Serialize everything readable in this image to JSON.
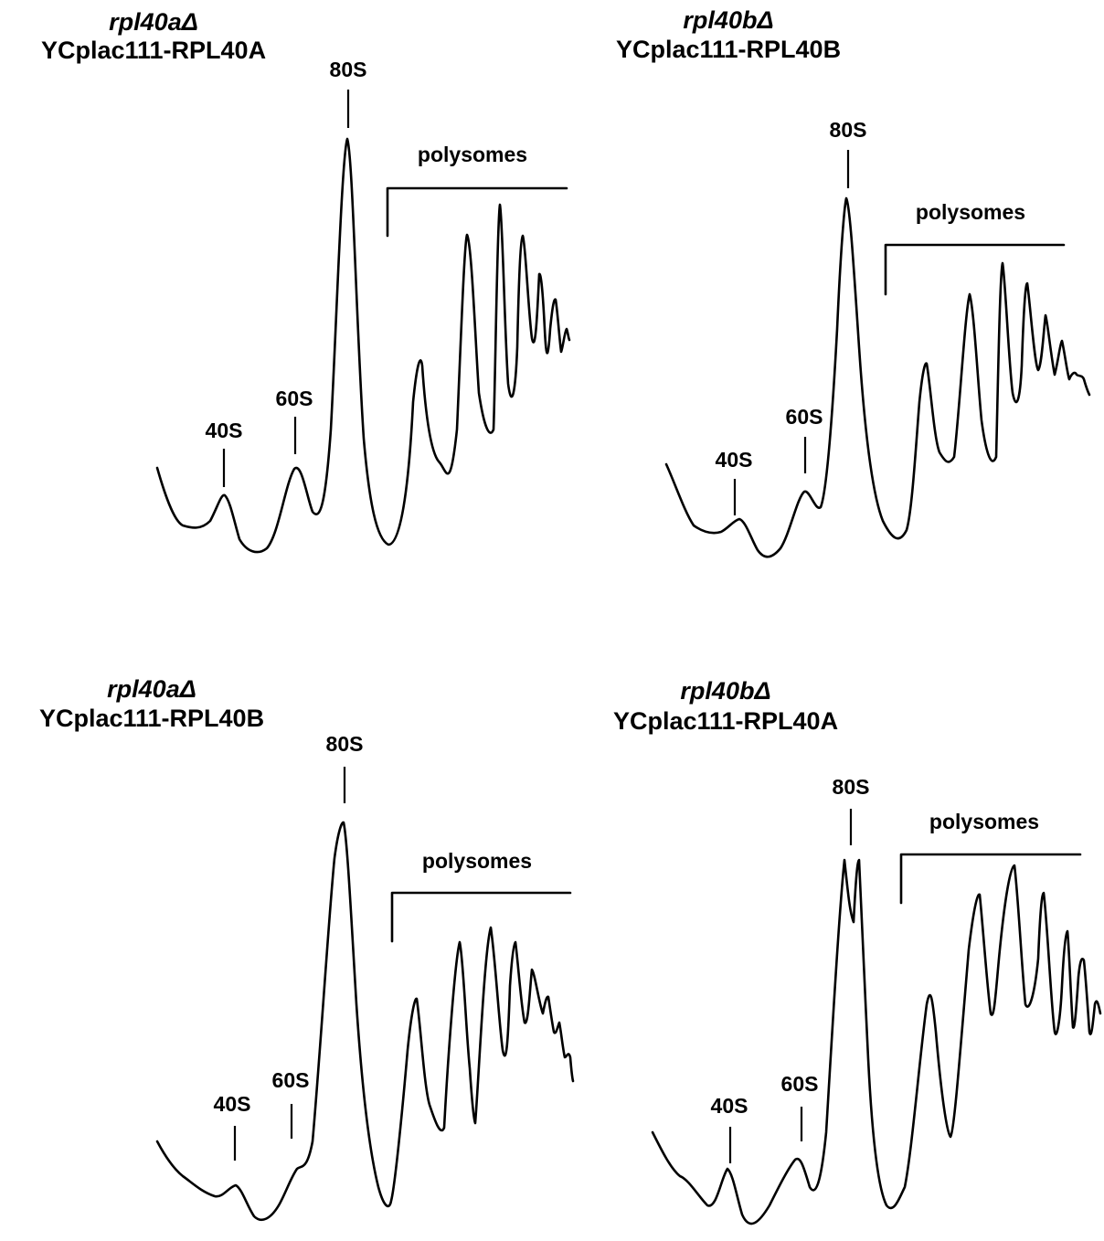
{
  "panels": [
    {
      "strain": "rpl40aΔ",
      "plasmid": "YCplac111-RPL40A",
      "peaks": {
        "p40S": "40S",
        "p60S": "60S",
        "p80S": "80S"
      },
      "polysomes_label": "polysomes"
    },
    {
      "strain": "rpl40bΔ",
      "plasmid": "YCplac111-RPL40B",
      "peaks": {
        "p40S": "40S",
        "p60S": "60S",
        "p80S": "80S"
      },
      "polysomes_label": "polysomes"
    },
    {
      "strain": "rpl40aΔ",
      "plasmid": "YCplac111-RPL40B",
      "peaks": {
        "p40S": "40S",
        "p60S": "60S",
        "p80S": "80S"
      },
      "polysomes_label": "polysomes"
    },
    {
      "strain": "rpl40bΔ",
      "plasmid": "YCplac111-RPL40A",
      "peaks": {
        "p40S": "40S",
        "p60S": "60S",
        "p80S": "80S"
      },
      "polysomes_label": "polysomes"
    }
  ]
}
